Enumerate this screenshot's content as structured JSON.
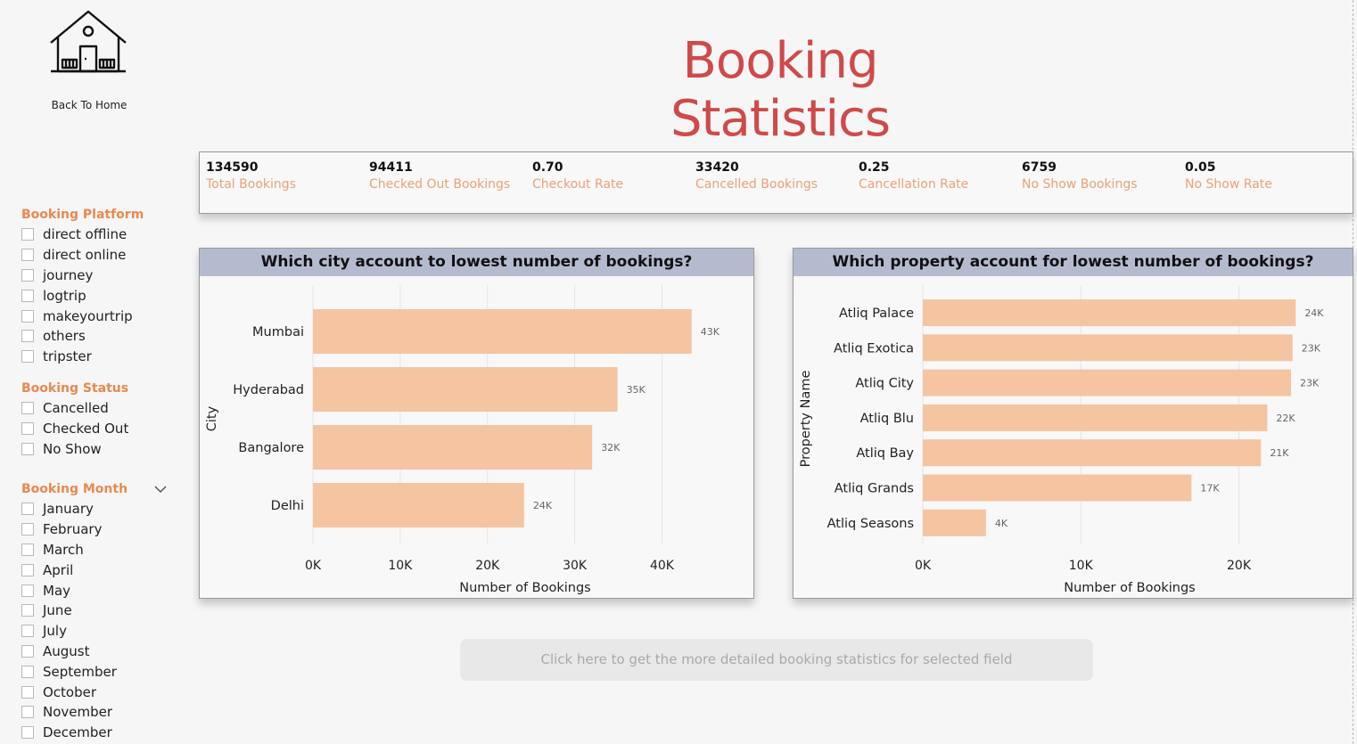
{
  "nav": {
    "home_label": "Back To Home",
    "home_icon": "house-icon"
  },
  "page": {
    "title": "Booking Statistics",
    "accent": "#cf4a4a"
  },
  "slicers": {
    "platform": {
      "title": "Booking Platform",
      "items": [
        "direct offline",
        "direct online",
        "journey",
        "logtrip",
        "makeyourtrip",
        "others",
        "tripster"
      ]
    },
    "status": {
      "title": "Booking Status",
      "items": [
        "Cancelled",
        "Checked Out",
        "No Show"
      ]
    },
    "month": {
      "title": "Booking Month",
      "expand_icon": "chevron-down-icon",
      "items": [
        "January",
        "February",
        "March",
        "April",
        "May",
        "June",
        "July",
        "August",
        "September",
        "October",
        "November",
        "December"
      ]
    }
  },
  "kpis": [
    {
      "value": "134590",
      "label": "Total Bookings"
    },
    {
      "value": "94411",
      "label": "Checked Out Bookings"
    },
    {
      "value": "0.70",
      "label": "Checkout Rate"
    },
    {
      "value": "33420",
      "label": "Cancelled Bookings"
    },
    {
      "value": "0.25",
      "label": "Cancellation Rate"
    },
    {
      "value": "6759",
      "label": "No Show Bookings"
    },
    {
      "value": "0.05",
      "label": "No Show Rate"
    }
  ],
  "chart_data": [
    {
      "type": "bar",
      "orientation": "horizontal",
      "title": "Which city account to lowest number of bookings?",
      "xlabel": "Number of Bookings",
      "ylabel": "City",
      "categories": [
        "Mumbai",
        "Hyderabad",
        "Bangalore",
        "Delhi"
      ],
      "values": [
        43400,
        34900,
        32000,
        24200
      ],
      "data_labels": [
        "43K",
        "35K",
        "32K",
        "24K"
      ],
      "xlim": [
        0,
        47000
      ],
      "xticks": [
        0,
        10000,
        20000,
        30000,
        40000
      ],
      "xtick_labels": [
        "0K",
        "10K",
        "20K",
        "30K",
        "40K"
      ],
      "grid": true,
      "bar_color": "#f5c4a0"
    },
    {
      "type": "bar",
      "orientation": "horizontal",
      "title": "Which property account for lowest number of bookings?",
      "xlabel": "Number of Bookings",
      "ylabel": "Property Name",
      "categories": [
        "Atliq Palace",
        "Atliq Exotica",
        "Atliq City",
        "Atliq Blu",
        "Atliq Bay",
        "Atliq Grands",
        "Atliq Seasons"
      ],
      "values": [
        23600,
        23400,
        23300,
        21800,
        21400,
        17000,
        4000
      ],
      "data_labels": [
        "24K",
        "23K",
        "23K",
        "22K",
        "21K",
        "17K",
        "4K"
      ],
      "xlim": [
        0,
        25500
      ],
      "xticks": [
        0,
        10000,
        20000
      ],
      "xtick_labels": [
        "0K",
        "10K",
        "20K"
      ],
      "grid": true,
      "bar_color": "#f5c4a0"
    }
  ],
  "cta": {
    "label": "Click here to get the more detailed booking statistics for selected field"
  }
}
